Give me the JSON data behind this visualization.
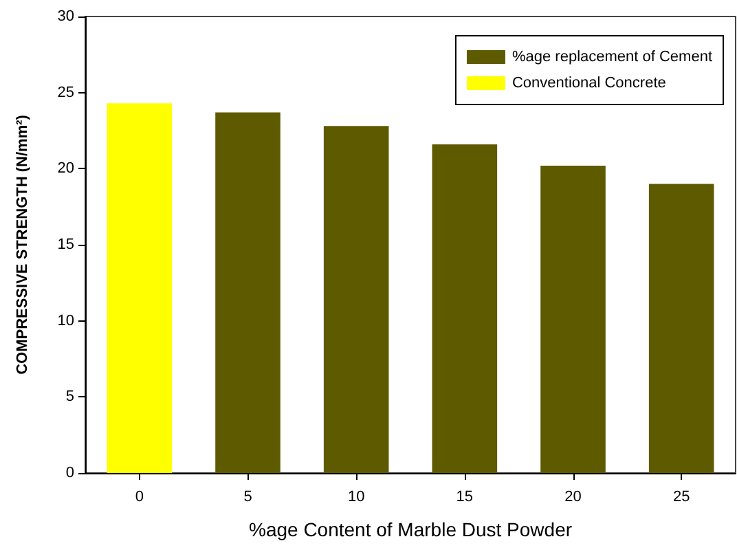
{
  "chart_data": {
    "type": "bar",
    "xlabel": "%age Content of Marble Dust Powder",
    "ylabel": "COMPRESSIVE STRENGTH (N/mm²)",
    "categories": [
      "0",
      "5",
      "10",
      "15",
      "20",
      "25"
    ],
    "series": [
      {
        "name": "%age replacement of Cement",
        "color": "#5e5a00",
        "values": [
          null,
          23.7,
          22.8,
          21.6,
          20.2,
          19.0
        ]
      },
      {
        "name": "Conventional Concrete",
        "color": "#ffff00",
        "values": [
          24.3,
          null,
          null,
          null,
          null,
          null
        ]
      }
    ],
    "ylim": [
      0,
      30
    ],
    "yticks": [
      0,
      5,
      10,
      15,
      20,
      25,
      30
    ],
    "grid": false,
    "legend": "top right"
  }
}
